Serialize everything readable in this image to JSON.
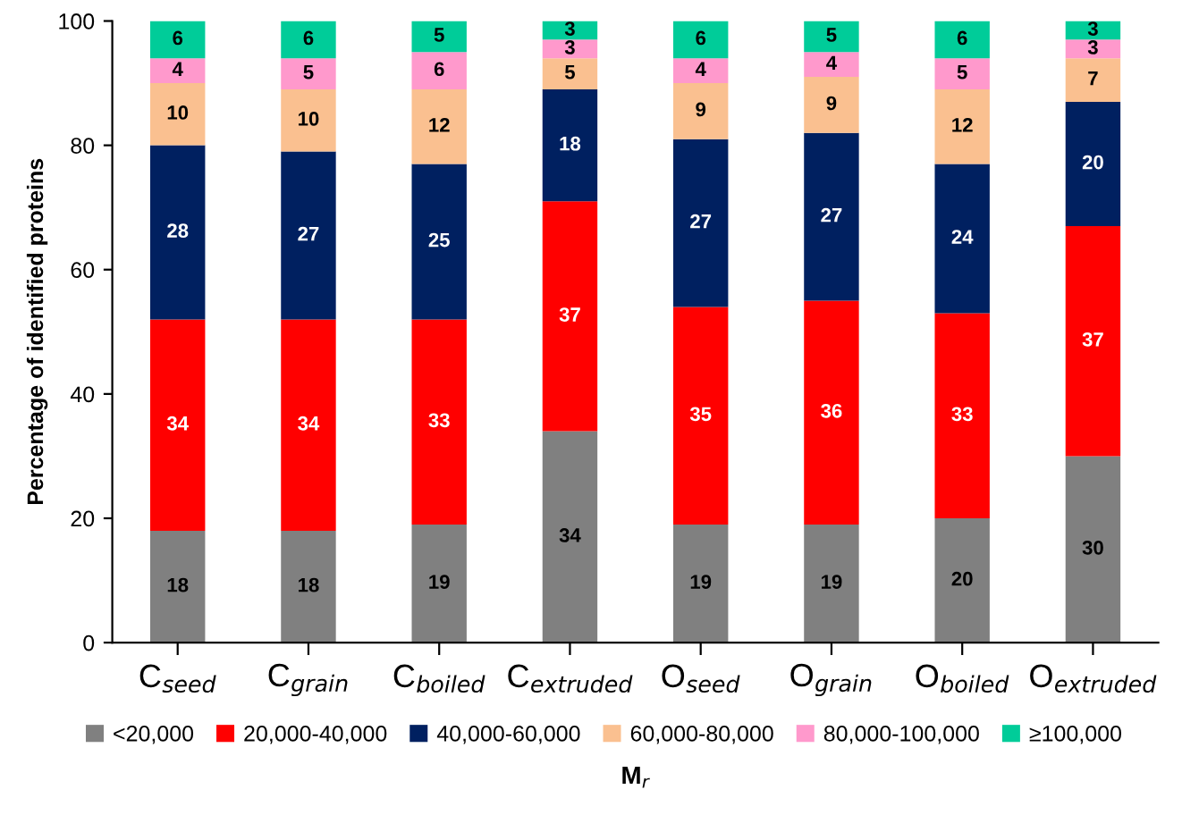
{
  "chart_data": {
    "type": "bar",
    "stacked": true,
    "ylabel": "Percentage of identified proteins",
    "xlabel": "M$_{r}$",
    "categories": [
      "C$_{seed}$",
      "C$_{grain}$",
      "C$_{boiled}$",
      "C$_{extruded}$",
      "O$_{seed}$",
      "O$_{grain}$",
      "O$_{boiled}$",
      "O$_{extruded}$"
    ],
    "series": [
      {
        "name": "<20,000",
        "color": "#808080",
        "values": [
          18,
          18,
          19,
          34,
          19,
          19,
          20,
          30
        ]
      },
      {
        "name": "20,000-40,000",
        "color": "#ff0000",
        "values": [
          34,
          34,
          33,
          37,
          35,
          36,
          33,
          37
        ]
      },
      {
        "name": "40,000-60,000",
        "color": "#002060",
        "values": [
          28,
          27,
          25,
          18,
          27,
          27,
          24,
          20
        ]
      },
      {
        "name": "60,000-80,000",
        "color": "#fac090",
        "values": [
          10,
          10,
          12,
          5,
          9,
          9,
          12,
          7
        ]
      },
      {
        "name": "80,000-100,000",
        "color": "#ff99cc",
        "values": [
          4,
          5,
          6,
          3,
          4,
          4,
          5,
          3
        ]
      },
      {
        "name": "≥100,000",
        "color": "#00cc99",
        "values": [
          6,
          6,
          5,
          3,
          6,
          5,
          6,
          3
        ]
      }
    ],
    "ylim": [
      0,
      100
    ],
    "yticks": [
      0,
      20,
      40,
      60,
      80,
      100
    ],
    "grid": false,
    "legend": "bottom",
    "data_labels": true
  }
}
